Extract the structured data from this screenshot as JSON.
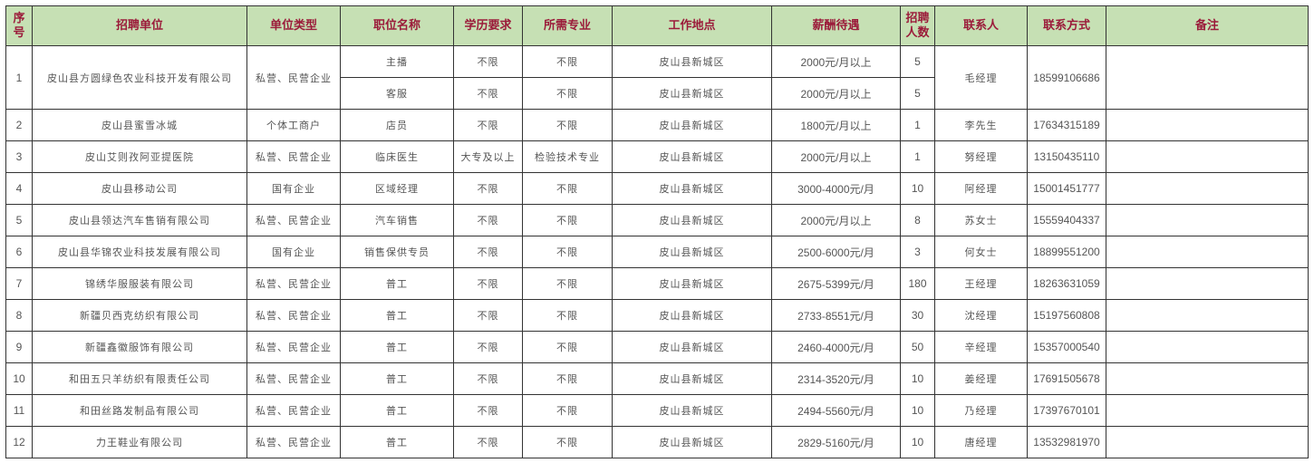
{
  "colors": {
    "header_bg": "#c6e0b4",
    "header_text": "#9b1b3a",
    "body_text": "#555555"
  },
  "headers": [
    "序号",
    "招聘单位",
    "单位类型",
    "职位名称",
    "学历要求",
    "所需专业",
    "工作地点",
    "薪酬待遇",
    "招聘人数",
    "联系人",
    "联系方式",
    "备注"
  ],
  "rows": [
    {
      "no": "1",
      "company": "皮山县方圆绿色农业科技开发有限公司",
      "type": "私营、民营企业",
      "contact": "毛经理",
      "phone": "18599106686",
      "note": "",
      "positions": [
        {
          "title": "主播",
          "education": "不限",
          "major": "不限",
          "location": "皮山县新城区",
          "salary": "2000元/月以上",
          "count": "5"
        },
        {
          "title": "客服",
          "education": "不限",
          "major": "不限",
          "location": "皮山县新城区",
          "salary": "2000元/月以上",
          "count": "5"
        }
      ]
    },
    {
      "no": "2",
      "company": "皮山县蜜雪冰城",
      "type": "个体工商户",
      "contact": "李先生",
      "phone": "17634315189",
      "note": "",
      "positions": [
        {
          "title": "店员",
          "education": "不限",
          "major": "不限",
          "location": "皮山县新城区",
          "salary": "1800元/月以上",
          "count": "1"
        }
      ]
    },
    {
      "no": "3",
      "company": "皮山艾则孜阿亚提医院",
      "type": "私营、民营企业",
      "contact": "努经理",
      "phone": "13150435110",
      "note": "",
      "positions": [
        {
          "title": "临床医生",
          "education": "大专及以上",
          "major": "检验技术专业",
          "location": "皮山县新城区",
          "salary": "2000元/月以上",
          "count": "1"
        }
      ]
    },
    {
      "no": "4",
      "company": "皮山县移动公司",
      "type": "国有企业",
      "contact": "阿经理",
      "phone": "15001451777",
      "note": "",
      "positions": [
        {
          "title": "区域经理",
          "education": "不限",
          "major": "不限",
          "location": "皮山县新城区",
          "salary": "3000-4000元/月",
          "count": "10"
        }
      ]
    },
    {
      "no": "5",
      "company": "皮山县领达汽车售销有限公司",
      "type": "私营、民营企业",
      "contact": "苏女士",
      "phone": "15559404337",
      "note": "",
      "positions": [
        {
          "title": "汽车销售",
          "education": "不限",
          "major": "不限",
          "location": "皮山县新城区",
          "salary": "2000元/月以上",
          "count": "8"
        }
      ]
    },
    {
      "no": "6",
      "company": "皮山县华锦农业科技发展有限公司",
      "type": "国有企业",
      "contact": "何女士",
      "phone": "18899551200",
      "note": "",
      "positions": [
        {
          "title": "销售保供专员",
          "education": "不限",
          "major": "不限",
          "location": "皮山县新城区",
          "salary": "2500-6000元/月",
          "count": "3"
        }
      ]
    },
    {
      "no": "7",
      "company": "锦绣华服服装有限公司",
      "type": "私营、民营企业",
      "contact": "王经理",
      "phone": "18263631059",
      "note": "",
      "positions": [
        {
          "title": "普工",
          "education": "不限",
          "major": "不限",
          "location": "皮山县新城区",
          "salary": "2675-5399元/月",
          "count": "180"
        }
      ]
    },
    {
      "no": "8",
      "company": "新疆贝西克纺织有限公司",
      "type": "私营、民营企业",
      "contact": "沈经理",
      "phone": "15197560808",
      "note": "",
      "positions": [
        {
          "title": "普工",
          "education": "不限",
          "major": "不限",
          "location": "皮山县新城区",
          "salary": "2733-8551元/月",
          "count": "30"
        }
      ]
    },
    {
      "no": "9",
      "company": "新疆鑫徽服饰有限公司",
      "type": "私营、民营企业",
      "contact": "辛经理",
      "phone": "15357000540",
      "note": "",
      "positions": [
        {
          "title": "普工",
          "education": "不限",
          "major": "不限",
          "location": "皮山县新城区",
          "salary": "2460-4000元/月",
          "count": "50"
        }
      ]
    },
    {
      "no": "10",
      "company": "和田五只羊纺织有限责任公司",
      "type": "私营、民营企业",
      "contact": "姜经理",
      "phone": "17691505678",
      "note": "",
      "positions": [
        {
          "title": "普工",
          "education": "不限",
          "major": "不限",
          "location": "皮山县新城区",
          "salary": "2314-3520元/月",
          "count": "10"
        }
      ]
    },
    {
      "no": "11",
      "company": "和田丝路发制品有限公司",
      "type": "私营、民营企业",
      "contact": "乃经理",
      "phone": "17397670101",
      "note": "",
      "positions": [
        {
          "title": "普工",
          "education": "不限",
          "major": "不限",
          "location": "皮山县新城区",
          "salary": "2494-5560元/月",
          "count": "10"
        }
      ]
    },
    {
      "no": "12",
      "company": "力王鞋业有限公司",
      "type": "私营、民营企业",
      "contact": "唐经理",
      "phone": "13532981970",
      "note": "",
      "positions": [
        {
          "title": "普工",
          "education": "不限",
          "major": "不限",
          "location": "皮山县新城区",
          "salary": "2829-5160元/月",
          "count": "10"
        }
      ]
    }
  ]
}
